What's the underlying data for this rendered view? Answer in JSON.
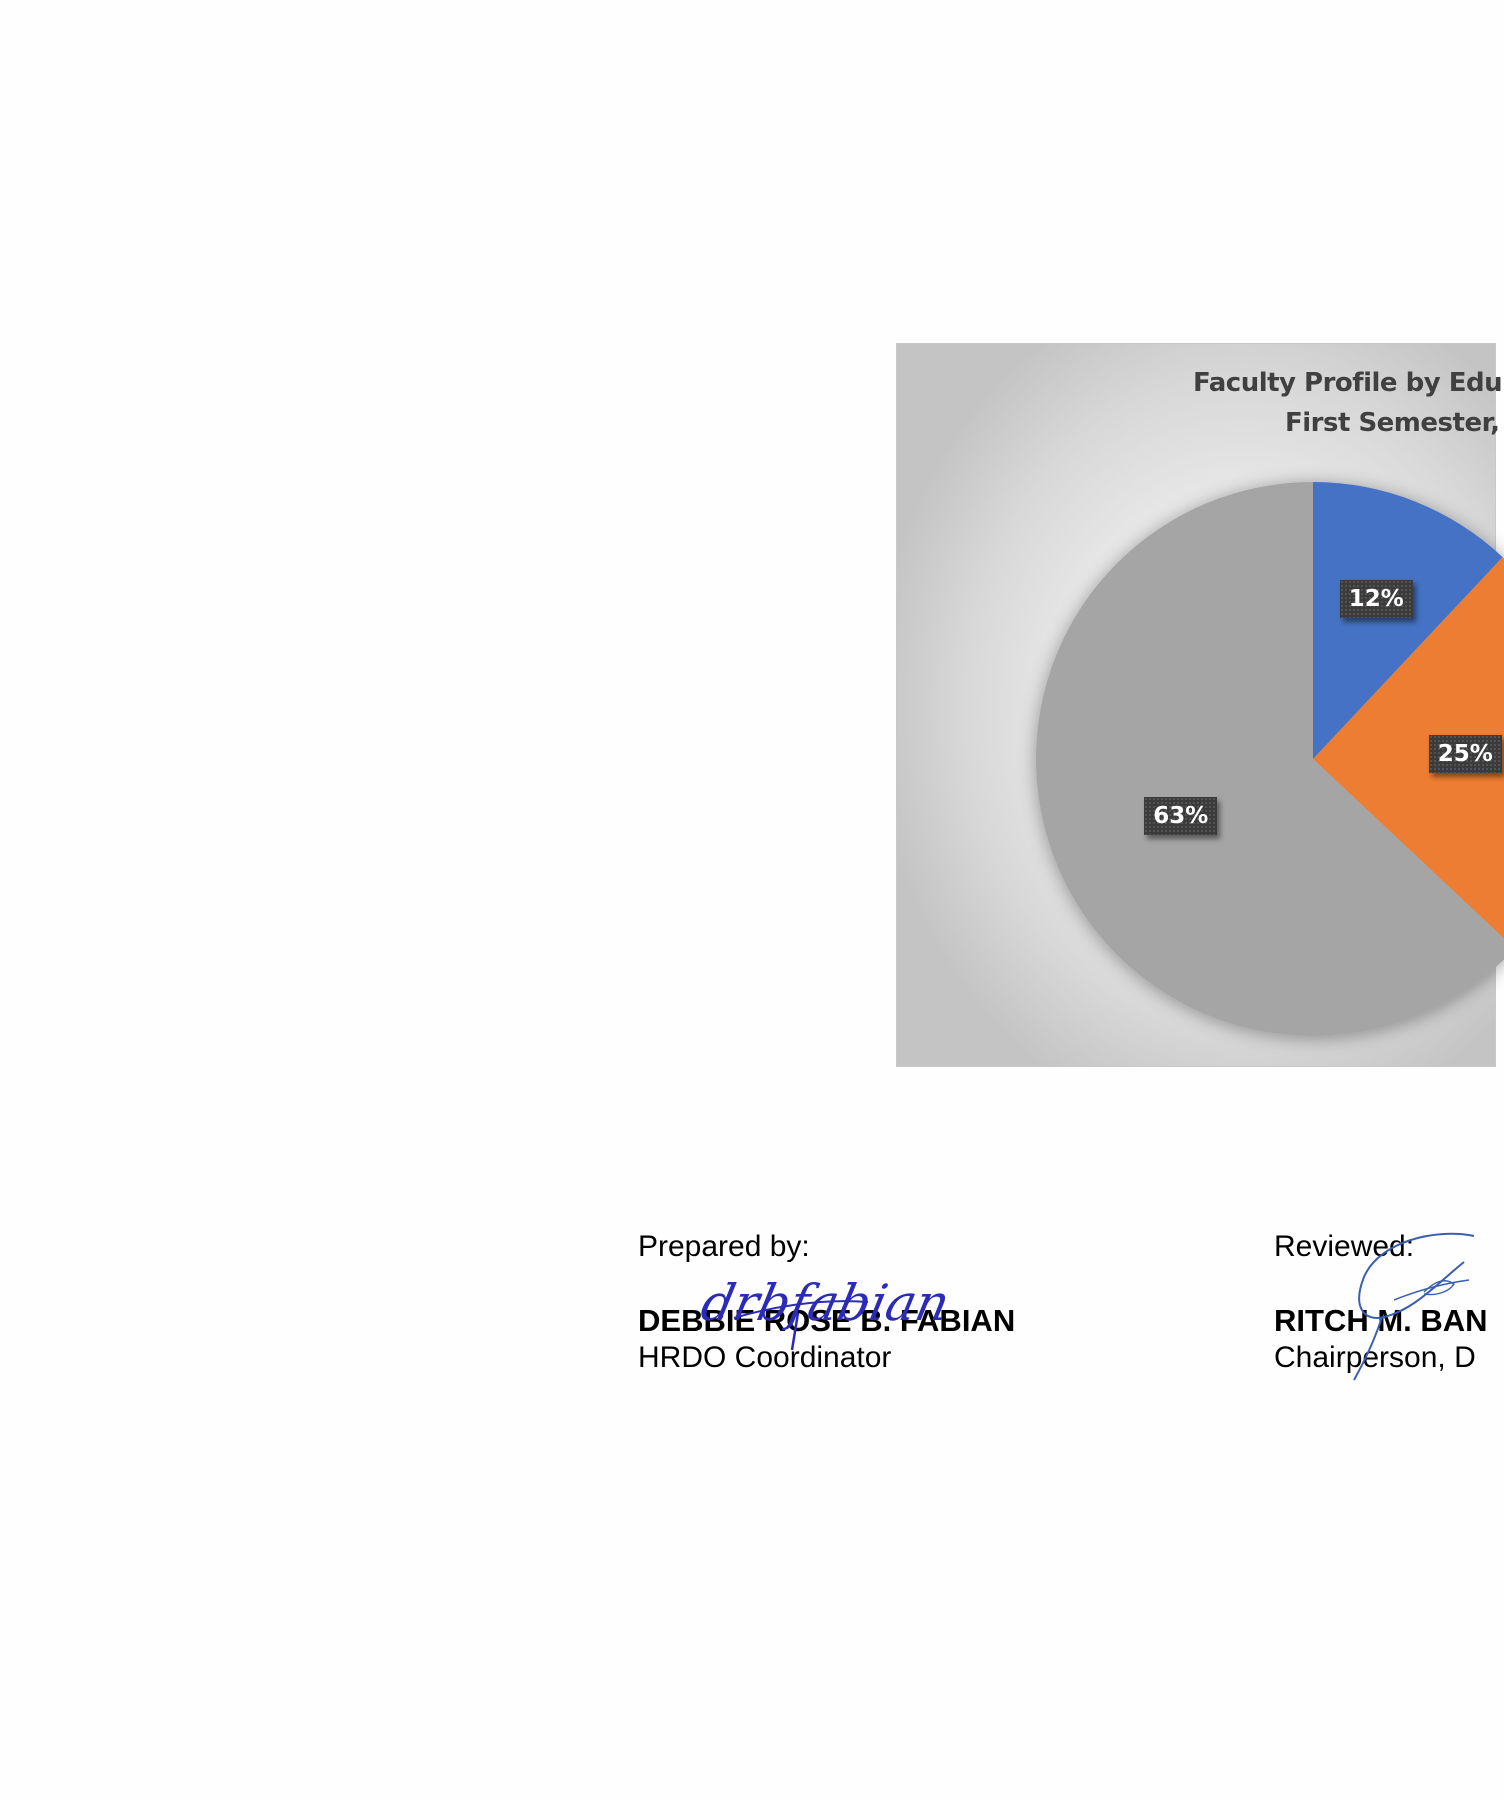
{
  "chart": {
    "title_line1": "Faculty Profile by Edu",
    "title_line2": "First Semester,"
  },
  "chart_data": {
    "type": "pie",
    "title": "Faculty Profile by Edu First Semester,",
    "values": [
      12,
      25,
      63
    ],
    "labels": [
      "12%",
      "25%",
      "63%"
    ],
    "colors": [
      "#4472c4",
      "#ed7d31",
      "#a5a5a5"
    ]
  },
  "signatories": {
    "prepared": {
      "caption": "Prepared by:",
      "name": "DEBBIE ROSE B. FABIAN",
      "role": "HRDO Coordinator",
      "signature_text": "drbfabian"
    },
    "reviewed": {
      "caption": "Reviewed:",
      "name": "RITCH M. BAN",
      "role": "Chairperson, D"
    }
  }
}
